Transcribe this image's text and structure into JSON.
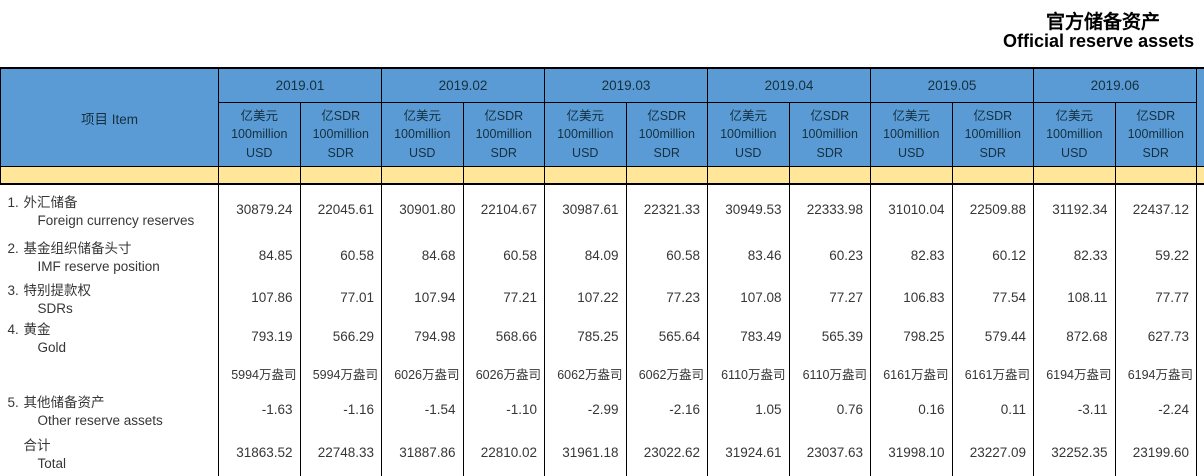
{
  "title": {
    "zh": "官方储备资产",
    "en": "Official reserve assets"
  },
  "colors": {
    "header_blue": "#5B9BD5",
    "stripe_yellow": "#FFE699",
    "border": "#000000"
  },
  "table": {
    "item_header": "项目  Item",
    "months": [
      "2019.01",
      "2019.02",
      "2019.03",
      "2019.04",
      "2019.05",
      "2019.06"
    ],
    "unit_usd": {
      "line1": "亿美元",
      "line2": "100million",
      "line3": "USD"
    },
    "unit_sdr": {
      "line1": "亿SDR",
      "line2": "100million",
      "line3": "SDR"
    },
    "rows": [
      {
        "num": "1.",
        "zh": "外汇储备",
        "en": "Foreign currency reserves",
        "values": [
          "30879.24",
          "22045.61",
          "30901.80",
          "22104.67",
          "30987.61",
          "22321.33",
          "30949.53",
          "22333.98",
          "31010.04",
          "22509.88",
          "31192.34",
          "22437.12"
        ]
      },
      {
        "num": "2.",
        "zh": "基金组织储备头寸",
        "en": "IMF reserve position",
        "values": [
          "84.85",
          "60.58",
          "84.68",
          "60.58",
          "84.09",
          "60.58",
          "83.46",
          "60.23",
          "82.83",
          "60.12",
          "82.33",
          "59.22"
        ]
      },
      {
        "num": "3.",
        "zh": "特别提款权",
        "en": "SDRs",
        "values": [
          "107.86",
          "77.01",
          "107.94",
          "77.21",
          "107.22",
          "77.23",
          "107.08",
          "77.27",
          "106.83",
          "77.54",
          "108.11",
          "77.77"
        ]
      },
      {
        "num": "4.",
        "zh": "黄金",
        "en": "Gold",
        "values": [
          "793.19",
          "566.29",
          "794.98",
          "568.66",
          "785.25",
          "565.64",
          "783.49",
          "565.39",
          "798.25",
          "579.44",
          "872.68",
          "627.73"
        ]
      },
      {
        "num": "",
        "zh": "",
        "en": "",
        "values": [
          "5994万盎司",
          "5994万盎司",
          "6026万盎司",
          "6026万盎司",
          "6062万盎司",
          "6062万盎司",
          "6110万盎司",
          "6110万盎司",
          "6161万盎司",
          "6161万盎司",
          "6194万盎司",
          "6194万盎司"
        ]
      },
      {
        "num": "5.",
        "zh": "其他储备资产",
        "en": "Other reserve assets",
        "values": [
          "-1.63",
          "-1.16",
          "-1.54",
          "-1.10",
          "-2.99",
          "-2.16",
          "1.05",
          "0.76",
          "0.16",
          "0.11",
          "-3.11",
          "-2.24"
        ]
      },
      {
        "num": "",
        "zh": "合计",
        "en": "Total",
        "values": [
          "31863.52",
          "22748.33",
          "31887.86",
          "22810.02",
          "31961.18",
          "23022.62",
          "31924.61",
          "23037.63",
          "31998.10",
          "23227.09",
          "32252.35",
          "23199.60"
        ]
      }
    ]
  }
}
